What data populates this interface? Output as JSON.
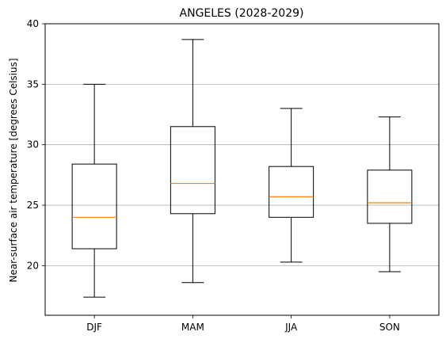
{
  "chart_data": {
    "type": "box",
    "title": "ANGELES (2028-2029)",
    "xlabel": "",
    "ylabel": "Near-surface air temperature [degrees Celsius]",
    "ylim": [
      15.9,
      40
    ],
    "yticks": [
      20,
      25,
      30,
      35,
      40
    ],
    "grid": "horizontal",
    "categories": [
      "DJF",
      "MAM",
      "JJA",
      "SON"
    ],
    "boxes": [
      {
        "category": "DJF",
        "whisker_low": 17.4,
        "q1": 21.4,
        "median": 24.0,
        "q3": 28.4,
        "whisker_high": 35.0
      },
      {
        "category": "MAM",
        "whisker_low": 18.6,
        "q1": 24.3,
        "median": 26.8,
        "q3": 31.5,
        "whisker_high": 38.7
      },
      {
        "category": "JJA",
        "whisker_low": 20.3,
        "q1": 24.0,
        "median": 25.7,
        "q3": 28.2,
        "whisker_high": 33.0
      },
      {
        "category": "SON",
        "whisker_low": 19.5,
        "q1": 23.5,
        "median": 25.2,
        "q3": 27.9,
        "whisker_high": 32.3
      }
    ],
    "colors": {
      "box": "#000000",
      "median": "#ff7f0e",
      "grid": "#b0b0b0"
    }
  }
}
